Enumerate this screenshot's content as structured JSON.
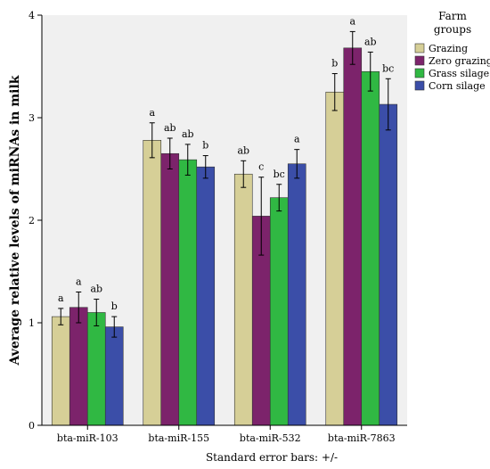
{
  "chart_data": {
    "type": "bar",
    "title": "",
    "xlabel": "Standard error bars: +/-",
    "ylabel": "Average relative levels of miRNAs in milk",
    "ylim": [
      0,
      4
    ],
    "yticks": [
      "0",
      "1",
      "2",
      "3",
      "4"
    ],
    "categories": [
      "bta-miR-103",
      "bta-miR-155",
      "bta-miR-532",
      "bta-miR-7863"
    ],
    "legend_title_lines": [
      "Farm",
      "groups"
    ],
    "legend_position": "top-right, outside plot",
    "grid": false,
    "series": [
      {
        "name": "Grazing",
        "color": "#d6cf97",
        "values": [
          1.06,
          2.78,
          2.45,
          3.25
        ],
        "err": [
          0.08,
          0.17,
          0.13,
          0.18
        ],
        "labels": [
          "a",
          "a",
          "ab",
          "b"
        ]
      },
      {
        "name": "Zero grazing",
        "color": "#7c236b",
        "values": [
          1.15,
          2.65,
          2.04,
          3.68
        ],
        "err": [
          0.15,
          0.15,
          0.38,
          0.16
        ],
        "labels": [
          "a",
          "ab",
          "c",
          "a"
        ]
      },
      {
        "name": "Grass silage",
        "color": "#30b843",
        "values": [
          1.1,
          2.59,
          2.22,
          3.45
        ],
        "err": [
          0.13,
          0.15,
          0.13,
          0.19
        ],
        "labels": [
          "ab",
          "ab",
          "bc",
          "ab"
        ]
      },
      {
        "name": "Corn silage",
        "color": "#3b4ea8",
        "values": [
          0.96,
          2.52,
          2.55,
          3.13
        ],
        "err": [
          0.1,
          0.11,
          0.14,
          0.25
        ],
        "labels": [
          "b",
          "b",
          "a",
          "bc"
        ]
      }
    ]
  }
}
